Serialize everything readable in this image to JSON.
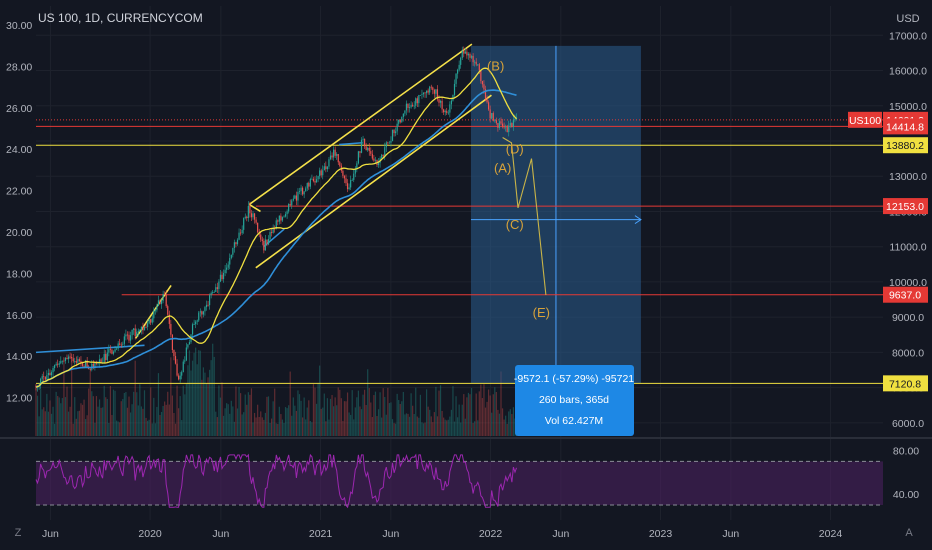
{
  "header": {
    "title": "US 100, 1D, CURRENCYCOM"
  },
  "colors": {
    "background": "#131722",
    "grid": "#1e222d",
    "up": "#26a69a",
    "down": "#ef5350",
    "ma_yellow": "#f0e040",
    "ma_blue": "#2f8fd8",
    "channel": "#f5e14a",
    "rsi": "#9c27b0",
    "rsi_band": "#4a1f5e",
    "price_tag": "#e53935",
    "measure_box": "#2a5d8e",
    "label_blue": "#1e88e5",
    "wave_label": "#d7a23a"
  },
  "chart_data": {
    "type": "candlestick",
    "symbol": "US 100",
    "interval": "1D",
    "source": "CURRENCYCOM",
    "right_axis": {
      "unit": "USD",
      "ticks": [
        "17000.0",
        "16000.0",
        "15000.0",
        "14000.0",
        "13000.0",
        "12000.0",
        "11000.0",
        "10000.0",
        "9000.0",
        "8000.0",
        "7000.0",
        "6000.0"
      ],
      "tick_values": [
        17000,
        16000,
        15000,
        14000,
        13000,
        12000,
        11000,
        10000,
        9000,
        8000,
        7000,
        6000
      ]
    },
    "left_axis": {
      "ticks": [
        "30.00",
        "28.00",
        "26.00",
        "24.00",
        "22.00",
        "20.00",
        "18.00",
        "16.00",
        "14.00",
        "12.00"
      ],
      "tick_values": [
        30,
        28,
        26,
        24,
        22,
        20,
        18,
        16,
        14,
        12
      ]
    },
    "x_axis": {
      "labels": [
        "Jun",
        "2020",
        "Jun",
        "2021",
        "Jun",
        "2022",
        "Jun",
        "2023",
        "Jun",
        "2024"
      ],
      "dates": [
        "2019-06",
        "2020-01",
        "2020-06",
        "2021-01",
        "2021-06",
        "2022-01",
        "2022-06",
        "2023-01",
        "2023-06",
        "2024-01"
      ]
    },
    "price_path": [
      [
        "2019-05",
        7050
      ],
      [
        "2019-07",
        7850
      ],
      [
        "2019-09",
        7600
      ],
      [
        "2019-11",
        8300
      ],
      [
        "2020-01",
        8900
      ],
      [
        "2020-02",
        9700
      ],
      [
        "2020-03",
        7100
      ],
      [
        "2020-04",
        8700
      ],
      [
        "2020-06",
        10100
      ],
      [
        "2020-08",
        12100
      ],
      [
        "2020-09",
        11000
      ],
      [
        "2020-10",
        11700
      ],
      [
        "2020-11",
        12300
      ],
      [
        "2021-01",
        13100
      ],
      [
        "2021-02",
        13700
      ],
      [
        "2021-03",
        12600
      ],
      [
        "2021-04",
        14000
      ],
      [
        "2021-05",
        13300
      ],
      [
        "2021-07",
        14900
      ],
      [
        "2021-09",
        15500
      ],
      [
        "2021-10",
        14700
      ],
      [
        "2021-11",
        16600
      ],
      [
        "2021-12",
        16300
      ],
      [
        "2022-01",
        14700
      ],
      [
        "2022-02",
        14300
      ],
      [
        "2022-03",
        14601
      ]
    ],
    "horizontal_levels": [
      {
        "label": "US100",
        "value": "14601.2",
        "price": 14601.2,
        "style": "dotted",
        "color": "#e53935"
      },
      {
        "value": "14414.8",
        "price": 14414.8,
        "color": "#e53935"
      },
      {
        "value": "13880.2",
        "price": 13880.2,
        "color": "#f0e040"
      },
      {
        "value": "12153.0",
        "price": 12153.0,
        "color": "#e53935"
      },
      {
        "value": "9637.0",
        "price": 9637.0,
        "color": "#e53935"
      },
      {
        "value": "7120.8",
        "price": 7120.8,
        "color": "#f0e040"
      }
    ],
    "wave_labels": [
      {
        "text": "(B)",
        "date": "2022-01-12",
        "price": 16000
      },
      {
        "text": "(A)",
        "date": "2022-01-27",
        "price": 13100
      },
      {
        "text": "(D)",
        "date": "2022-02-22",
        "price": 13650
      },
      {
        "text": "(C)",
        "date": "2022-02-22",
        "price": 11500
      },
      {
        "text": "(E)",
        "date": "2022-04-20",
        "price": 9000
      }
    ],
    "projection_path": [
      [
        "2022-01-27",
        14100
      ],
      [
        "2022-02-15",
        13950
      ],
      [
        "2022-03-01",
        12100
      ],
      [
        "2022-03-30",
        13500
      ],
      [
        "2022-04-30",
        9630
      ]
    ],
    "measure": {
      "line1": "-9572.1 (-57.29%) -95721",
      "line2": "260 bars, 365d",
      "line3": "Vol 62.427M",
      "from_date": "2021-11-20",
      "to_date": "2022-11-20",
      "from_price": 16700,
      "to_price": 7120.8
    },
    "rsi": {
      "ticks": [
        "80.00",
        "40.00"
      ],
      "tick_values": [
        80,
        40
      ],
      "upper": 70,
      "lower": 30
    }
  }
}
